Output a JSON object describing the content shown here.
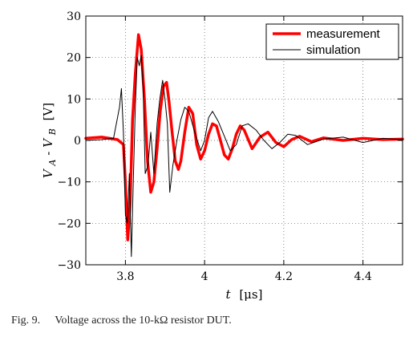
{
  "caption": {
    "label": "Fig. 9.",
    "text": "Voltage across the 10-kΩ resistor DUT."
  },
  "chart_data": {
    "type": "line",
    "xlabel_var": "t",
    "xlabel_unit": "[μs]",
    "ylabel_main": "V",
    "ylabel_sub_a": "A",
    "ylabel_sep": "-",
    "ylabel_sub_b": "B",
    "ylabel_unit": "[V]",
    "xlim": [
      3.7,
      4.5
    ],
    "ylim": [
      -30,
      30
    ],
    "xticks": [
      3.8,
      4.0,
      4.2,
      4.4
    ],
    "xtick_labels": [
      "3.8",
      "4",
      "4.2",
      "4.4"
    ],
    "yticks": [
      -30,
      -20,
      -10,
      0,
      10,
      20,
      30
    ],
    "ytick_labels": [
      "−30",
      "−20",
      "−10",
      "0",
      "10",
      "20",
      "30"
    ],
    "grid": true,
    "legend_position": "top-right",
    "series": [
      {
        "name": "measurement",
        "color": "#ff0000",
        "x": [
          3.7,
          3.74,
          3.78,
          3.795,
          3.8,
          3.806,
          3.812,
          3.818,
          3.825,
          3.833,
          3.84,
          3.848,
          3.856,
          3.864,
          3.872,
          3.88,
          3.888,
          3.896,
          3.904,
          3.91,
          3.918,
          3.926,
          3.934,
          3.94,
          3.95,
          3.96,
          3.97,
          3.98,
          3.99,
          4.0,
          4.01,
          4.02,
          4.03,
          4.04,
          4.05,
          4.06,
          4.07,
          4.08,
          4.09,
          4.1,
          4.12,
          4.14,
          4.16,
          4.18,
          4.2,
          4.22,
          4.24,
          4.27,
          4.3,
          4.35,
          4.4,
          4.45,
          4.5
        ],
        "y": [
          0.5,
          0.8,
          0.2,
          -1.0,
          -10.0,
          -24.0,
          -15.0,
          5.0,
          16.0,
          25.5,
          22.0,
          10.0,
          -5.0,
          -12.5,
          -10.0,
          -2.0,
          7.0,
          13.0,
          14.0,
          9.5,
          2.0,
          -5.0,
          -7.0,
          -5.0,
          2.0,
          8.0,
          6.5,
          -1.0,
          -4.5,
          -2.5,
          1.5,
          4.0,
          3.5,
          0.0,
          -3.5,
          -4.5,
          -2.0,
          1.5,
          3.5,
          2.5,
          -2.0,
          0.8,
          2.0,
          -0.5,
          -1.5,
          0.2,
          1.0,
          -0.3,
          0.6,
          0.0,
          0.5,
          0.2,
          0.3
        ]
      },
      {
        "name": "simulation",
        "color": "#000000",
        "x": [
          3.7,
          3.74,
          3.77,
          3.785,
          3.79,
          3.795,
          3.8,
          3.805,
          3.81,
          3.815,
          3.82,
          3.825,
          3.83,
          3.835,
          3.84,
          3.845,
          3.85,
          3.857,
          3.864,
          3.872,
          3.88,
          3.887,
          3.894,
          3.9,
          3.906,
          3.912,
          3.92,
          3.93,
          3.94,
          3.95,
          3.96,
          3.975,
          3.99,
          4.0,
          4.01,
          4.02,
          4.035,
          4.05,
          4.065,
          4.08,
          4.095,
          4.11,
          4.13,
          4.15,
          4.17,
          4.19,
          4.21,
          4.23,
          4.26,
          4.3,
          4.35,
          4.4,
          4.45,
          4.5
        ],
        "y": [
          0.0,
          0.2,
          0.5,
          8.0,
          12.5,
          2.0,
          -18.0,
          -20.0,
          -8.0,
          -28.0,
          -10.0,
          8.0,
          20.0,
          18.0,
          20.5,
          12.0,
          -8.0,
          -6.0,
          2.0,
          -8.0,
          4.0,
          10.0,
          14.5,
          10.0,
          4.0,
          -12.5,
          -6.0,
          0.0,
          5.0,
          8.0,
          7.0,
          2.0,
          -2.5,
          0.0,
          5.5,
          7.0,
          4.5,
          1.0,
          -2.5,
          -1.0,
          3.5,
          4.0,
          2.5,
          0.0,
          -2.0,
          -0.5,
          1.5,
          1.2,
          -1.0,
          0.3,
          0.8,
          -0.5,
          0.5,
          0.2
        ]
      }
    ]
  }
}
